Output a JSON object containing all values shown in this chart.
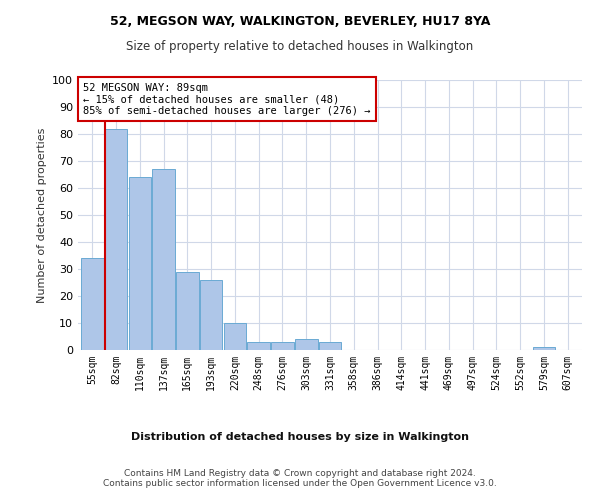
{
  "title1": "52, MEGSON WAY, WALKINGTON, BEVERLEY, HU17 8YA",
  "title2": "Size of property relative to detached houses in Walkington",
  "xlabel": "Distribution of detached houses by size in Walkington",
  "ylabel": "Number of detached properties",
  "bar_categories": [
    "55sqm",
    "82sqm",
    "110sqm",
    "137sqm",
    "165sqm",
    "193sqm",
    "220sqm",
    "248sqm",
    "276sqm",
    "303sqm",
    "331sqm",
    "358sqm",
    "386sqm",
    "414sqm",
    "441sqm",
    "469sqm",
    "497sqm",
    "524sqm",
    "552sqm",
    "579sqm",
    "607sqm"
  ],
  "bar_values": [
    34,
    82,
    64,
    67,
    29,
    26,
    10,
    3,
    3,
    4,
    3,
    0,
    0,
    0,
    0,
    0,
    0,
    0,
    0,
    1,
    0
  ],
  "bar_color": "#aec6e8",
  "bar_edge_color": "#6aaad4",
  "highlight_bar_index": 1,
  "highlight_color": "#cc0000",
  "annotation_text": "52 MEGSON WAY: 89sqm\n← 15% of detached houses are smaller (48)\n85% of semi-detached houses are larger (276) →",
  "annotation_box_color": "#ffffff",
  "annotation_box_edge_color": "#cc0000",
  "ylim": [
    0,
    100
  ],
  "yticks": [
    0,
    10,
    20,
    30,
    40,
    50,
    60,
    70,
    80,
    90,
    100
  ],
  "background_color": "#ffffff",
  "grid_color": "#d0d8e8",
  "footer1": "Contains HM Land Registry data © Crown copyright and database right 2024.",
  "footer2": "Contains public sector information licensed under the Open Government Licence v3.0."
}
